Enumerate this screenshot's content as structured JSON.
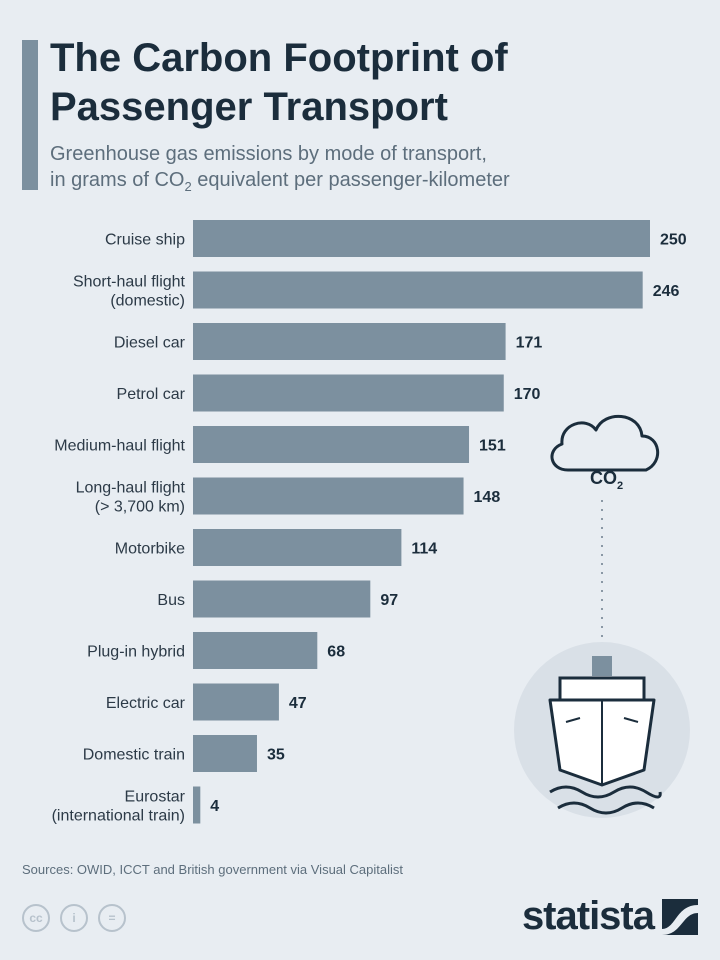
{
  "header": {
    "title": "The Carbon Footprint of Passenger Transport",
    "subtitle_line1": "Greenhouse gas emissions by mode of transport,",
    "subtitle_line2_pre": "in grams of CO",
    "subtitle_line2_sub": "2",
    "subtitle_line2_post": " equivalent per passenger-kilometer"
  },
  "chart_data": {
    "type": "bar",
    "orientation": "horizontal",
    "categories": [
      [
        "Cruise ship"
      ],
      [
        "Short-haul flight",
        "(domestic)"
      ],
      [
        "Diesel car"
      ],
      [
        "Petrol car"
      ],
      [
        "Medium-haul flight"
      ],
      [
        "Long-haul flight",
        "(> 3,700 km)"
      ],
      [
        "Motorbike"
      ],
      [
        "Bus"
      ],
      [
        "Plug-in hybrid"
      ],
      [
        "Electric car"
      ],
      [
        "Domestic train"
      ],
      [
        "Eurostar",
        "(international train)"
      ]
    ],
    "values": [
      250,
      246,
      171,
      170,
      151,
      148,
      114,
      97,
      68,
      47,
      35,
      4
    ],
    "xlim": [
      0,
      250
    ],
    "bar_color": "#7c909f",
    "grid": false,
    "legend": "none"
  },
  "illustration": {
    "cloud_label_pre": "CO",
    "cloud_label_sub": "2",
    "icons": [
      "cloud-icon",
      "ship-icon"
    ]
  },
  "footer": {
    "source": "Sources: OWID, ICCT and British government via Visual Capitalist",
    "license_icons": [
      "creative-commons-icon",
      "attribution-icon",
      "no-derivatives-icon"
    ],
    "license_glyphs": [
      "cc",
      "i",
      "="
    ],
    "brand": "statista"
  }
}
